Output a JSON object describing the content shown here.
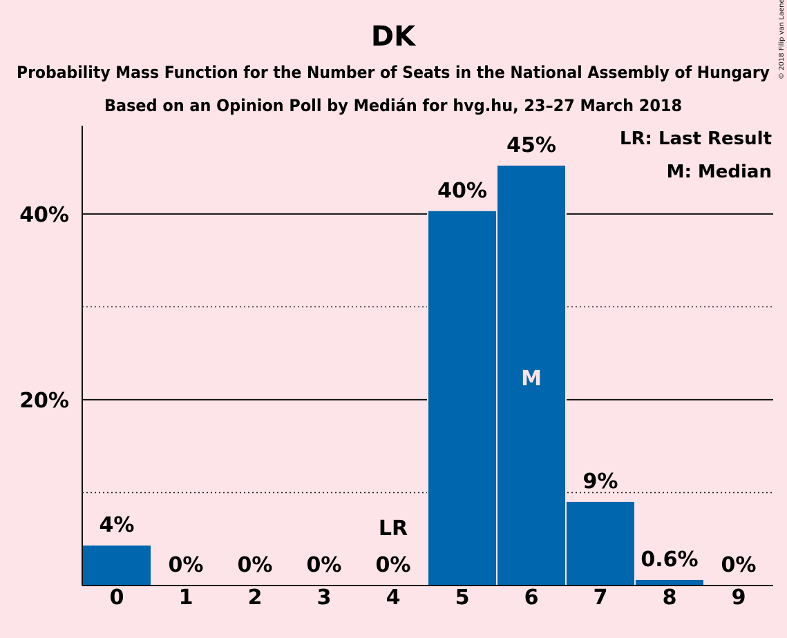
{
  "chart_data": {
    "type": "bar",
    "title": "DK",
    "subtitle_1": "Probability Mass Function for the Number of Seats in the National Assembly of Hungary",
    "subtitle_2": "Based on an Opinion Poll by Medián for hvg.hu, 23–27 March 2018",
    "categories": [
      "0",
      "1",
      "2",
      "3",
      "4",
      "5",
      "6",
      "7",
      "8",
      "9"
    ],
    "values": [
      4.3,
      0,
      0,
      0,
      0,
      40.3,
      45.2,
      9.0,
      0.6,
      0
    ],
    "value_labels": [
      "4%",
      "0%",
      "0%",
      "0%",
      "0%",
      "40%",
      "45%",
      "9%",
      "0.6%",
      "0%"
    ],
    "y_ticks": [
      {
        "value": 20,
        "label": "20%"
      },
      {
        "value": 40,
        "label": "40%"
      }
    ],
    "minor_gridlines": [
      10,
      30
    ],
    "ylim": [
      0,
      49.5
    ],
    "last_result": {
      "index": 4,
      "label": "LR"
    },
    "median": {
      "index": 6,
      "label": "M"
    },
    "legend": {
      "position": "top-right",
      "entries": [
        "LR: Last Result",
        "M: Median"
      ]
    },
    "bar_color": "#0066ad",
    "background_color": "#fce4e8",
    "copyright": "© 2018 Filip van Laenen"
  }
}
